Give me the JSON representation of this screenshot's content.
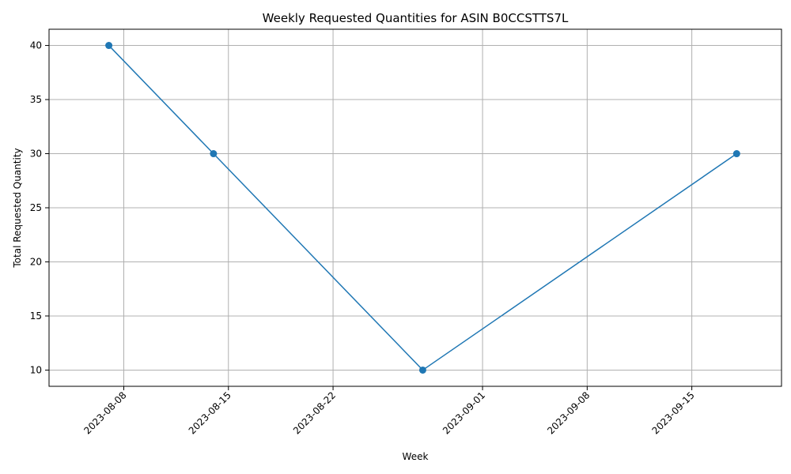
{
  "chart_data": {
    "type": "line",
    "title": "Weekly Requested Quantities for ASIN B0CCSTTS7L",
    "xlabel": "Week",
    "ylabel": "Total Requested Quantity",
    "x_ticks": [
      "2023-08-08",
      "2023-08-15",
      "2023-08-22",
      "2023-09-01",
      "2023-09-08",
      "2023-09-15"
    ],
    "y_ticks": [
      10,
      15,
      20,
      25,
      30,
      35,
      40
    ],
    "xlim": [
      "2023-08-03",
      "2023-09-21"
    ],
    "ylim": [
      8.5,
      41.5
    ],
    "grid": true,
    "x": [
      "2023-08-07",
      "2023-08-14",
      "2023-08-28",
      "2023-09-18"
    ],
    "series": [
      {
        "values": [
          40,
          30,
          10,
          30
        ],
        "color": "#1f77b4",
        "marker": "circle"
      }
    ]
  }
}
